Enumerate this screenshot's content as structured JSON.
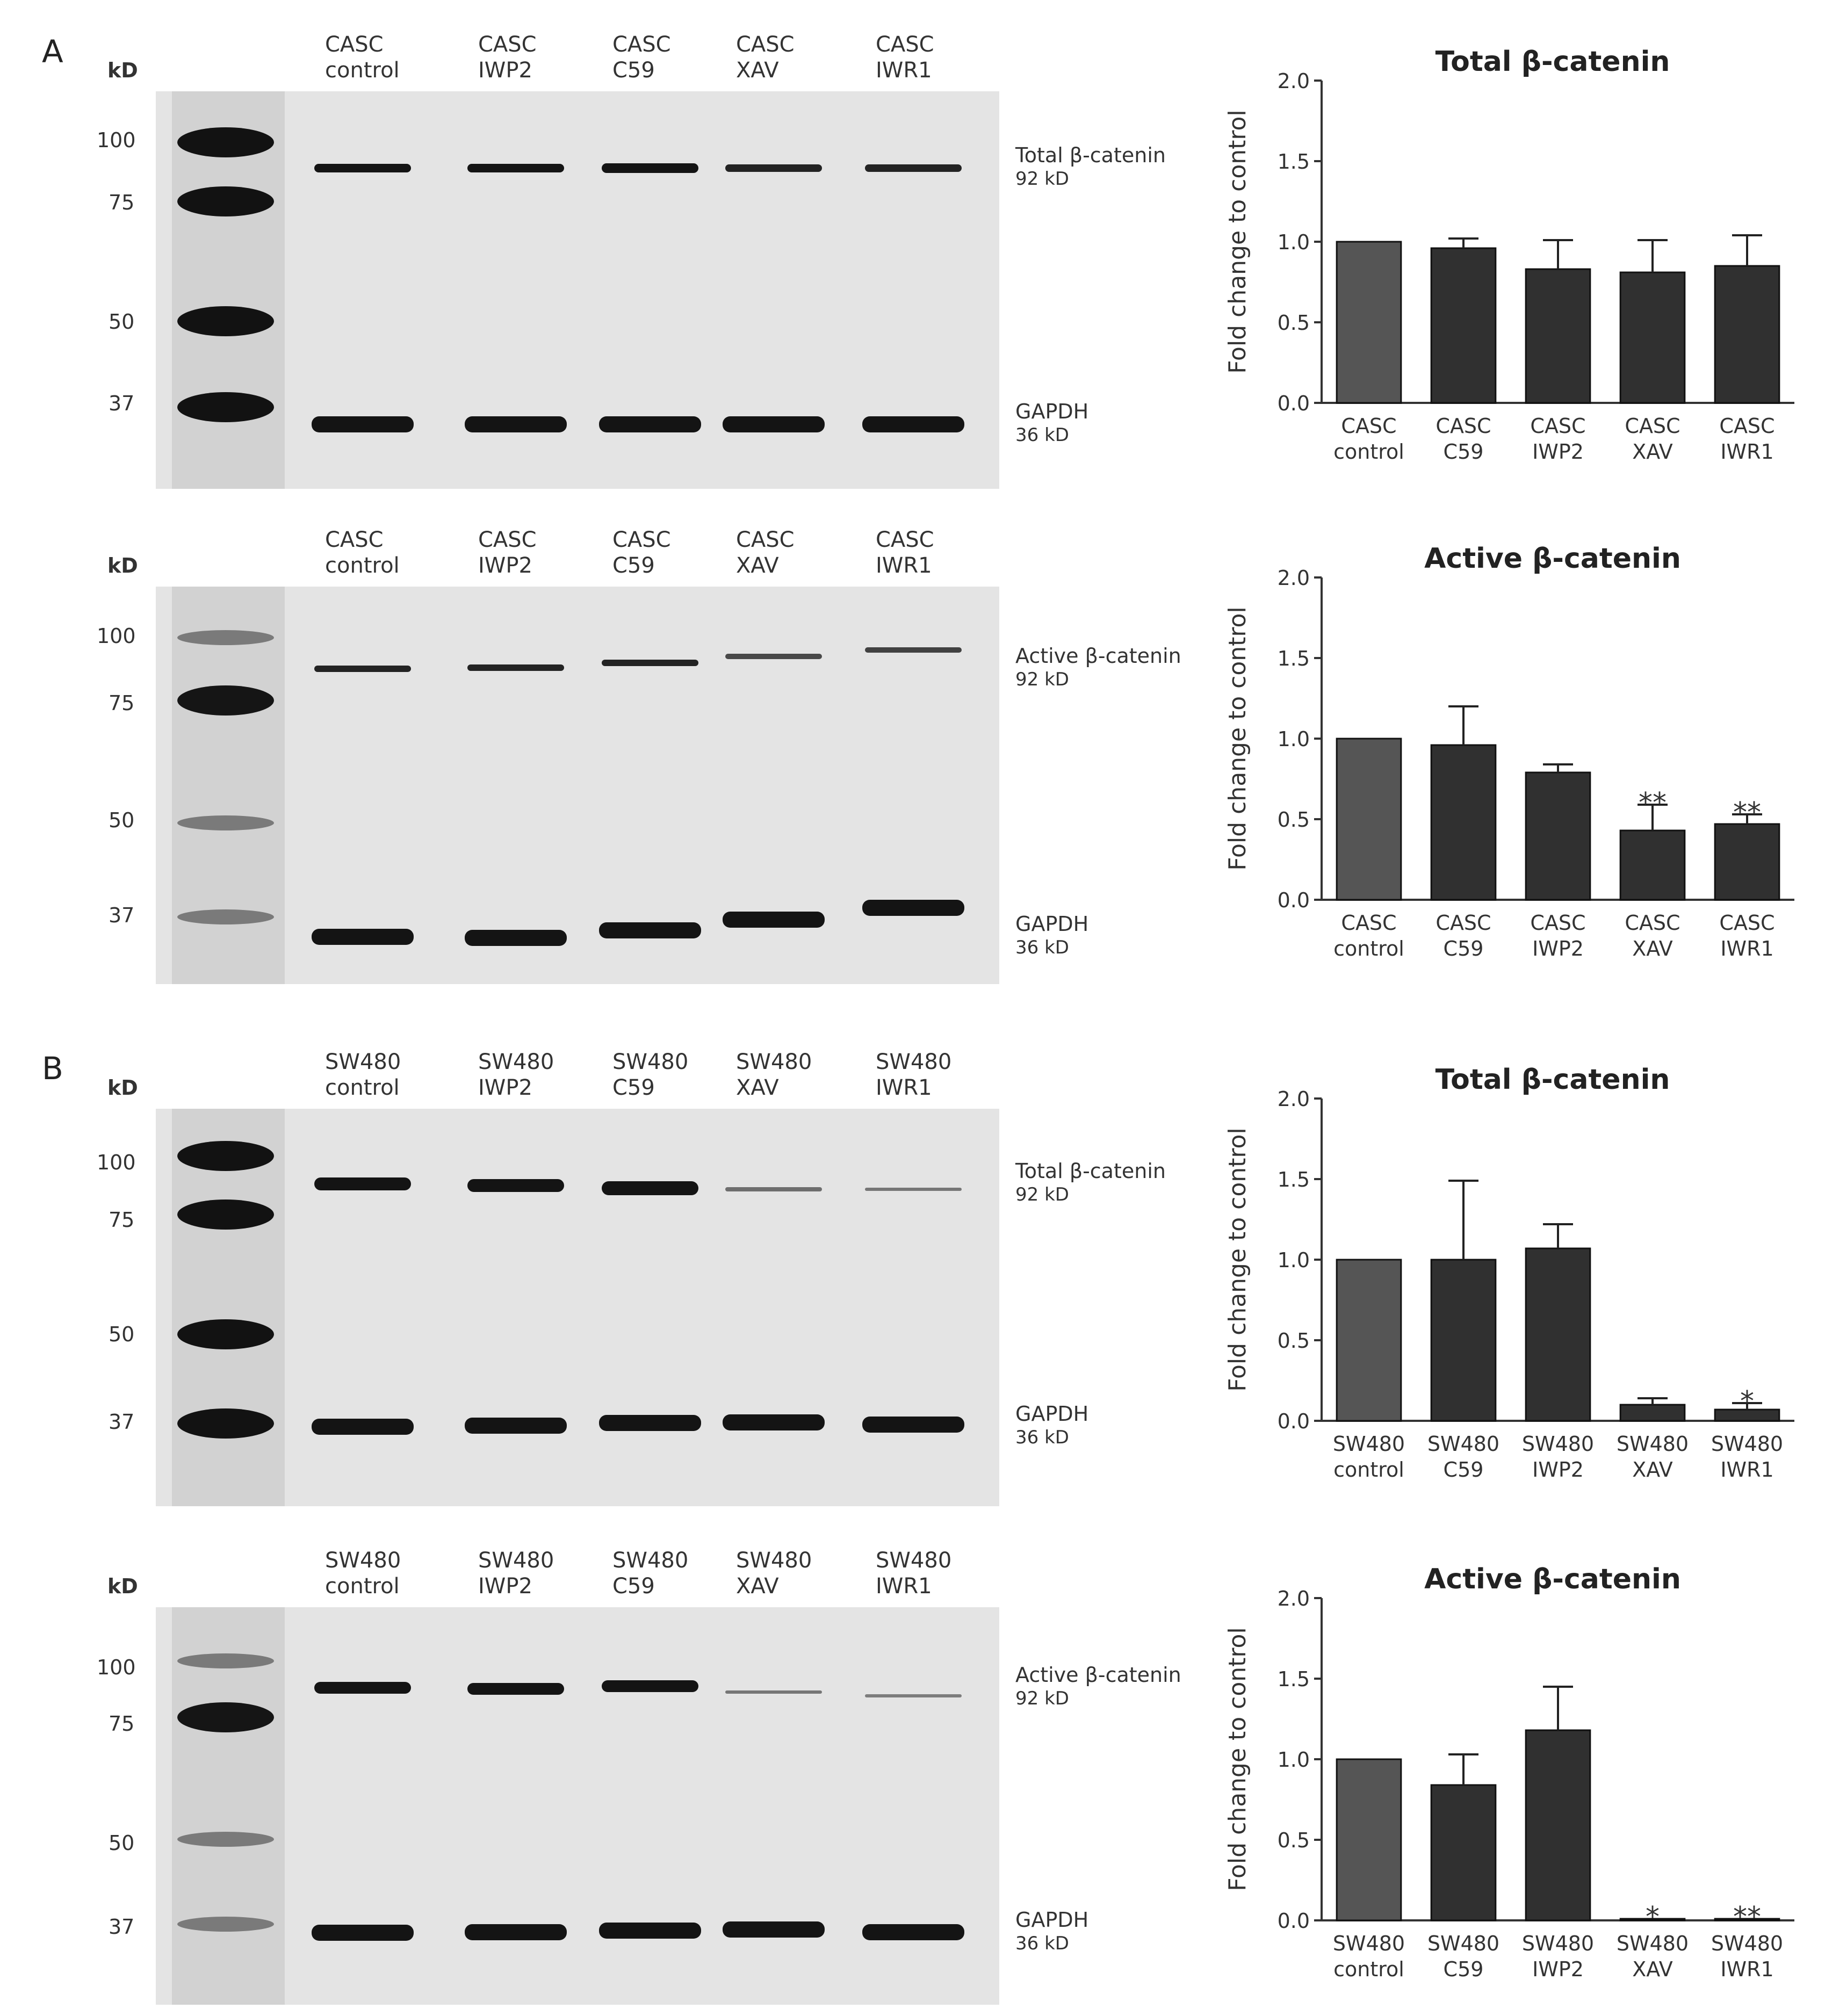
{
  "figure": {
    "panels": [
      "A",
      "B"
    ]
  },
  "blots": [
    {
      "id": "a-total",
      "kd_label": "kD",
      "lanes": [
        [
          "CASC",
          "control"
        ],
        [
          "CASC",
          "IWP2"
        ],
        [
          "CASC",
          "C59"
        ],
        [
          "CASC",
          "XAV"
        ],
        [
          "CASC",
          "IWR1"
        ]
      ],
      "markers": [
        "100",
        "75",
        "50",
        "37"
      ],
      "target": [
        "Total β-catenin",
        "92 kD"
      ],
      "loading": [
        "GAPDH",
        "36 kD"
      ]
    },
    {
      "id": "a-active",
      "kd_label": "kD",
      "lanes": [
        [
          "CASC",
          "control"
        ],
        [
          "CASC",
          "IWP2"
        ],
        [
          "CASC",
          "C59"
        ],
        [
          "CASC",
          "XAV"
        ],
        [
          "CASC",
          "IWR1"
        ]
      ],
      "markers": [
        "100",
        "75",
        "50",
        "37"
      ],
      "target": [
        "Active β-catenin",
        "92 kD"
      ],
      "loading": [
        "GAPDH",
        "36 kD"
      ]
    },
    {
      "id": "b-total",
      "kd_label": "kD",
      "lanes": [
        [
          "SW480",
          "control"
        ],
        [
          "SW480",
          "IWP2"
        ],
        [
          "SW480",
          "C59"
        ],
        [
          "SW480",
          "XAV"
        ],
        [
          "SW480",
          "IWR1"
        ]
      ],
      "markers": [
        "100",
        "75",
        "50",
        "37"
      ],
      "target": [
        "Total β-catenin",
        "92 kD"
      ],
      "loading": [
        "GAPDH",
        "36 kD"
      ]
    },
    {
      "id": "b-active",
      "kd_label": "kD",
      "lanes": [
        [
          "SW480",
          "control"
        ],
        [
          "SW480",
          "IWP2"
        ],
        [
          "SW480",
          "C59"
        ],
        [
          "SW480",
          "XAV"
        ],
        [
          "SW480",
          "IWR1"
        ]
      ],
      "markers": [
        "100",
        "75",
        "50",
        "37"
      ],
      "target": [
        "Active β-catenin",
        "92 kD"
      ],
      "loading": [
        "GAPDH",
        "36 kD"
      ]
    }
  ],
  "chart_data": [
    {
      "type": "bar",
      "title": "Total β-catenin",
      "ylabel": "Fold change to control",
      "categories": [
        [
          "CASC",
          "control"
        ],
        [
          "CASC",
          "C59"
        ],
        [
          "CASC",
          "IWP2"
        ],
        [
          "CASC",
          "XAV"
        ],
        [
          "CASC",
          "IWR1"
        ]
      ],
      "values": [
        1.0,
        0.96,
        0.83,
        0.81,
        0.85
      ],
      "errors": [
        0,
        0.06,
        0.18,
        0.2,
        0.19
      ],
      "significance": [
        "",
        "",
        "",
        "",
        ""
      ],
      "ylim": [
        0,
        2.0
      ],
      "yticks": [
        "0.0",
        "0.5",
        "1.0",
        "1.5",
        "2.0"
      ],
      "colors": [
        "#555555",
        "#303030",
        "#303030",
        "#303030",
        "#303030"
      ]
    },
    {
      "type": "bar",
      "title": "Active β-catenin",
      "ylabel": "Fold change to control",
      "categories": [
        [
          "CASC",
          "control"
        ],
        [
          "CASC",
          "C59"
        ],
        [
          "CASC",
          "IWP2"
        ],
        [
          "CASC",
          "XAV"
        ],
        [
          "CASC",
          "IWR1"
        ]
      ],
      "values": [
        1.0,
        0.96,
        0.79,
        0.43,
        0.47
      ],
      "errors": [
        0,
        0.24,
        0.05,
        0.16,
        0.06
      ],
      "significance": [
        "",
        "",
        "",
        "**",
        "**"
      ],
      "ylim": [
        0,
        2.0
      ],
      "yticks": [
        "0.0",
        "0.5",
        "1.0",
        "1.5",
        "2.0"
      ],
      "colors": [
        "#555555",
        "#303030",
        "#303030",
        "#303030",
        "#303030"
      ]
    },
    {
      "type": "bar",
      "title": "Total β-catenin",
      "ylabel": "Fold change to control",
      "categories": [
        [
          "SW480",
          "control"
        ],
        [
          "SW480",
          "C59"
        ],
        [
          "SW480",
          "IWP2"
        ],
        [
          "SW480",
          "XAV"
        ],
        [
          "SW480",
          "IWR1"
        ]
      ],
      "values": [
        1.0,
        1.0,
        1.07,
        0.1,
        0.07
      ],
      "errors": [
        0,
        0.49,
        0.15,
        0.04,
        0.04
      ],
      "significance": [
        "",
        "",
        "",
        "",
        "*"
      ],
      "ylim": [
        0,
        2.0
      ],
      "yticks": [
        "0.0",
        "0.5",
        "1.0",
        "1.5",
        "2.0"
      ],
      "colors": [
        "#555555",
        "#303030",
        "#303030",
        "#303030",
        "#303030"
      ]
    },
    {
      "type": "bar",
      "title": "Active β-catenin",
      "ylabel": "Fold change to control",
      "categories": [
        [
          "SW480",
          "control"
        ],
        [
          "SW480",
          "C59"
        ],
        [
          "SW480",
          "IWP2"
        ],
        [
          "SW480",
          "XAV"
        ],
        [
          "SW480",
          "IWR1"
        ]
      ],
      "values": [
        1.0,
        0.84,
        1.18,
        0.01,
        0.01
      ],
      "errors": [
        0,
        0.19,
        0.27,
        0,
        0
      ],
      "significance": [
        "",
        "",
        "",
        "*",
        "**"
      ],
      "ylim": [
        0,
        2.0
      ],
      "yticks": [
        "0.0",
        "0.5",
        "1.0",
        "1.5",
        "2.0"
      ],
      "colors": [
        "#555555",
        "#303030",
        "#303030",
        "#303030",
        "#303030"
      ]
    }
  ]
}
